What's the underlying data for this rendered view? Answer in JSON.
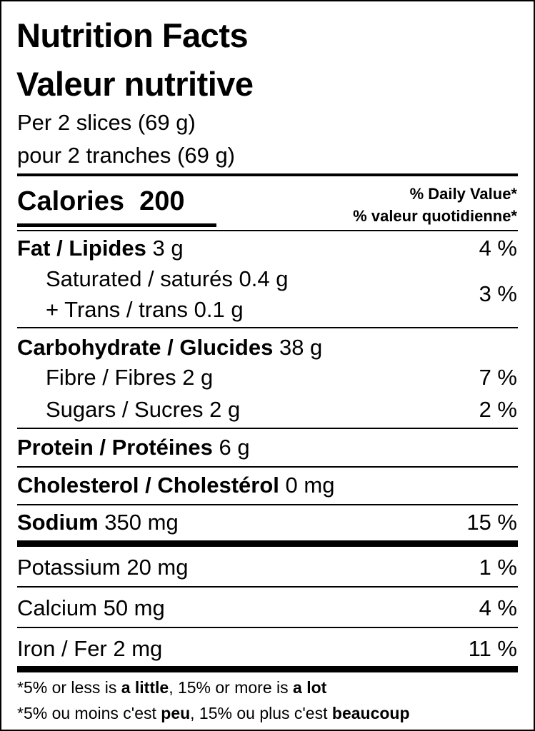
{
  "title_en": "Nutrition Facts",
  "title_fr": "Valeur nutritive",
  "serving_en": "Per 2 slices (69 g)",
  "serving_fr": "pour 2 tranches (69 g)",
  "calories_label": "Calories",
  "calories_value": "200",
  "dv_header_en": "% Daily Value*",
  "dv_header_fr": "% valeur quotidienne*",
  "fat": {
    "label": "Fat / Lipides",
    "amount": "3 g",
    "dv": "4 %"
  },
  "saturated": {
    "label": "Saturated / saturés 0.4 g"
  },
  "trans": {
    "label": "+ Trans / trans 0.1 g"
  },
  "sat_trans_dv": "3 %",
  "carbohydrate": {
    "label": "Carbohydrate / Glucides",
    "amount": "38 g"
  },
  "fibre": {
    "label": "Fibre / Fibres 2 g",
    "dv": "7 %"
  },
  "sugars": {
    "label": "Sugars / Sucres 2 g",
    "dv": "2 %"
  },
  "protein": {
    "label": "Protein / Protéines",
    "amount": "6 g"
  },
  "cholesterol": {
    "label": "Cholesterol / Cholestérol",
    "amount": "0 mg"
  },
  "sodium": {
    "label": "Sodium",
    "amount": "350 mg",
    "dv": "15 %"
  },
  "potassium": {
    "label": "Potassium 20 mg",
    "dv": "1 %"
  },
  "calcium": {
    "label": "Calcium 50 mg",
    "dv": "4 %"
  },
  "iron": {
    "label": "Iron / Fer 2 mg",
    "dv": "11 %"
  },
  "footnote_en": {
    "a": "*5% or less is ",
    "b": "a little",
    "c": ", 15% or more is ",
    "d": "a lot"
  },
  "footnote_fr": {
    "a": "*5% ou moins c'est ",
    "b": "peu",
    "c": ", 15% ou plus c'est ",
    "d": "beaucoup"
  }
}
